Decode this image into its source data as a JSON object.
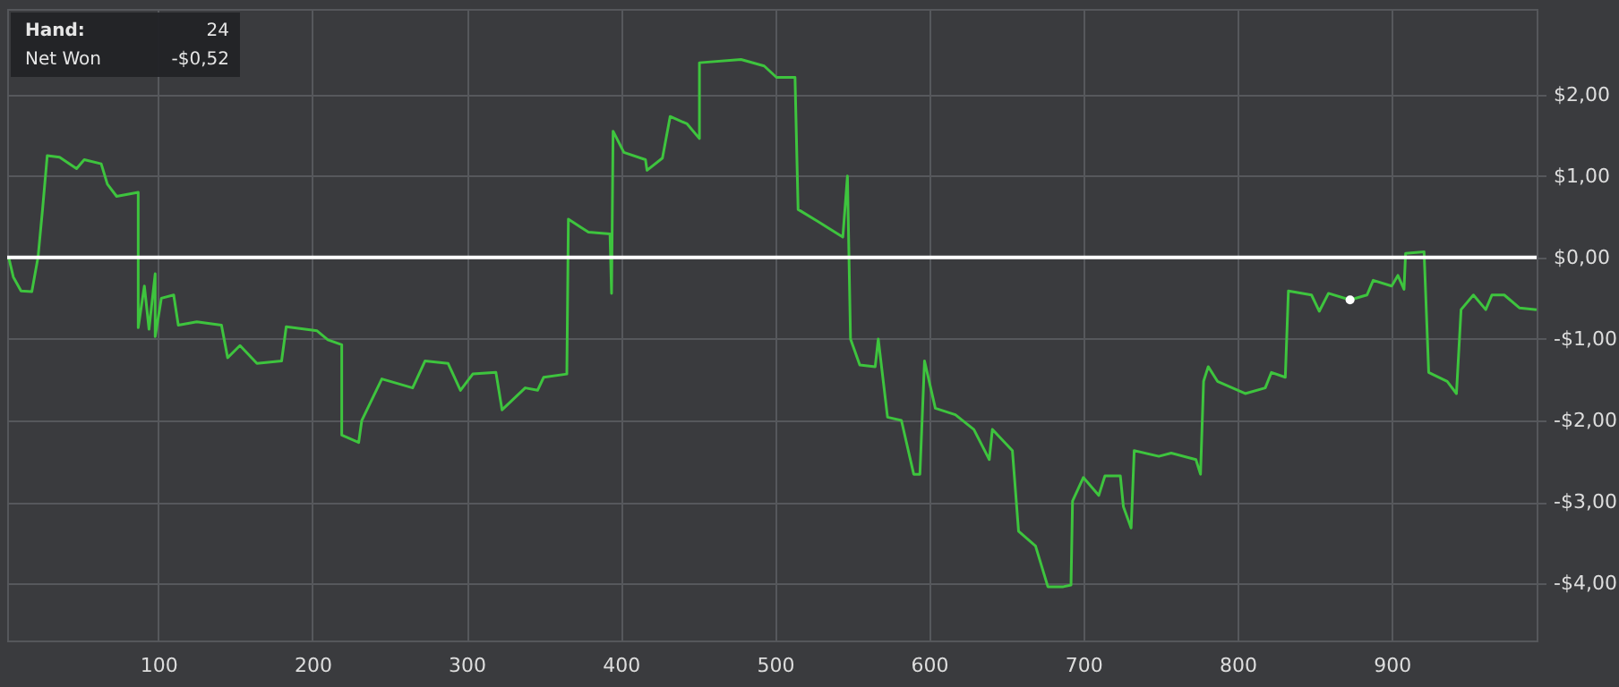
{
  "chart_data": {
    "type": "line",
    "xlim": [
      2,
      994
    ],
    "ylim": [
      -4.7,
      3.05
    ],
    "xticks": [
      100,
      200,
      300,
      400,
      500,
      600,
      700,
      800,
      900
    ],
    "yticks": [
      {
        "value": -4,
        "label": "-$4,00"
      },
      {
        "value": -3,
        "label": "-$3,00"
      },
      {
        "value": -2,
        "label": "-$2,00"
      },
      {
        "value": -1,
        "label": "-$1,00"
      },
      {
        "value": 0,
        "label": "$0,00"
      },
      {
        "value": 1,
        "label": "$1,00"
      },
      {
        "value": 2,
        "label": "$2,00"
      }
    ],
    "grid": true,
    "marker": "none",
    "line_style": "solid",
    "ref_lines": [
      {
        "axis": "y",
        "value": 0,
        "color": "#ffffff"
      }
    ],
    "annotations": [
      "Hand:",
      "24",
      "Net Won",
      "-$0,52"
    ],
    "series": [
      {
        "color": "#3ec43e",
        "x": [
          3,
          6,
          11,
          18,
          22,
          25,
          28,
          36,
          47,
          52,
          63,
          67,
          73,
          87,
          87,
          91,
          94,
          98,
          98,
          102,
          110,
          113,
          125,
          141,
          145,
          153,
          164,
          180,
          183,
          203,
          210,
          219,
          219,
          230,
          232,
          245,
          265,
          273,
          288,
          296,
          304,
          319,
          323,
          338,
          346,
          350,
          365,
          366,
          379,
          393,
          394,
          395,
          402,
          416,
          417,
          427,
          432,
          443,
          451,
          451,
          478,
          493,
          501,
          513,
          515,
          528,
          544,
          547,
          549,
          555,
          565,
          567,
          573,
          582,
          590,
          594,
          597,
          604,
          617,
          629,
          639,
          641,
          654,
          658,
          669,
          677,
          687,
          692,
          693,
          700,
          710,
          714,
          724,
          726,
          731,
          733,
          749,
          757,
          773,
          776,
          778,
          781,
          787,
          805,
          818,
          822,
          831,
          833,
          848,
          853,
          859,
          873,
          884,
          888,
          900,
          904,
          908,
          909,
          921,
          924,
          936,
          942,
          945,
          953,
          961,
          965,
          973,
          983,
          994
        ],
        "values": [
          0,
          -0.24,
          -0.41,
          -0.42,
          0.0,
          0.6,
          1.25,
          1.23,
          1.09,
          1.2,
          1.15,
          0.9,
          0.75,
          0.8,
          -0.86,
          -0.35,
          -0.88,
          -0.2,
          -0.97,
          -0.5,
          -0.46,
          -0.83,
          -0.79,
          -0.83,
          -1.23,
          -1.08,
          -1.3,
          -1.27,
          -0.85,
          -0.9,
          -1.01,
          -1.07,
          -2.18,
          -2.27,
          -2.0,
          -1.49,
          -1.6,
          -1.27,
          -1.3,
          -1.63,
          -1.43,
          -1.41,
          -1.87,
          -1.6,
          -1.63,
          -1.47,
          -1.43,
          0.47,
          0.31,
          0.29,
          -0.44,
          1.55,
          1.29,
          1.2,
          1.07,
          1.22,
          1.73,
          1.64,
          1.46,
          2.39,
          2.43,
          2.35,
          2.21,
          2.21,
          0.59,
          0.44,
          0.25,
          1.0,
          -1.0,
          -1.32,
          -1.34,
          -1.0,
          -1.96,
          -2.0,
          -2.66,
          -2.66,
          -1.27,
          -1.85,
          -1.93,
          -2.11,
          -2.48,
          -2.11,
          -2.37,
          -3.36,
          -3.54,
          -4.04,
          -4.04,
          -4.02,
          -2.99,
          -2.7,
          -2.92,
          -2.68,
          -2.68,
          -3.06,
          -3.32,
          -2.37,
          -2.44,
          -2.4,
          -2.48,
          -2.66,
          -1.52,
          -1.34,
          -1.52,
          -1.67,
          -1.6,
          -1.41,
          -1.47,
          -0.41,
          -0.46,
          -0.66,
          -0.44,
          -0.52,
          -0.46,
          -0.28,
          -0.35,
          -0.22,
          -0.39,
          0.05,
          0.07,
          -1.41,
          -1.52,
          -1.67,
          -0.64,
          -0.46,
          -0.64,
          -0.46,
          -0.46,
          -0.62,
          -0.64
        ]
      },
      {
        "type": "scatter",
        "color": "#ffffff",
        "x": [
          873
        ],
        "values": [
          -0.52
        ],
        "marker": "circle"
      }
    ]
  }
}
